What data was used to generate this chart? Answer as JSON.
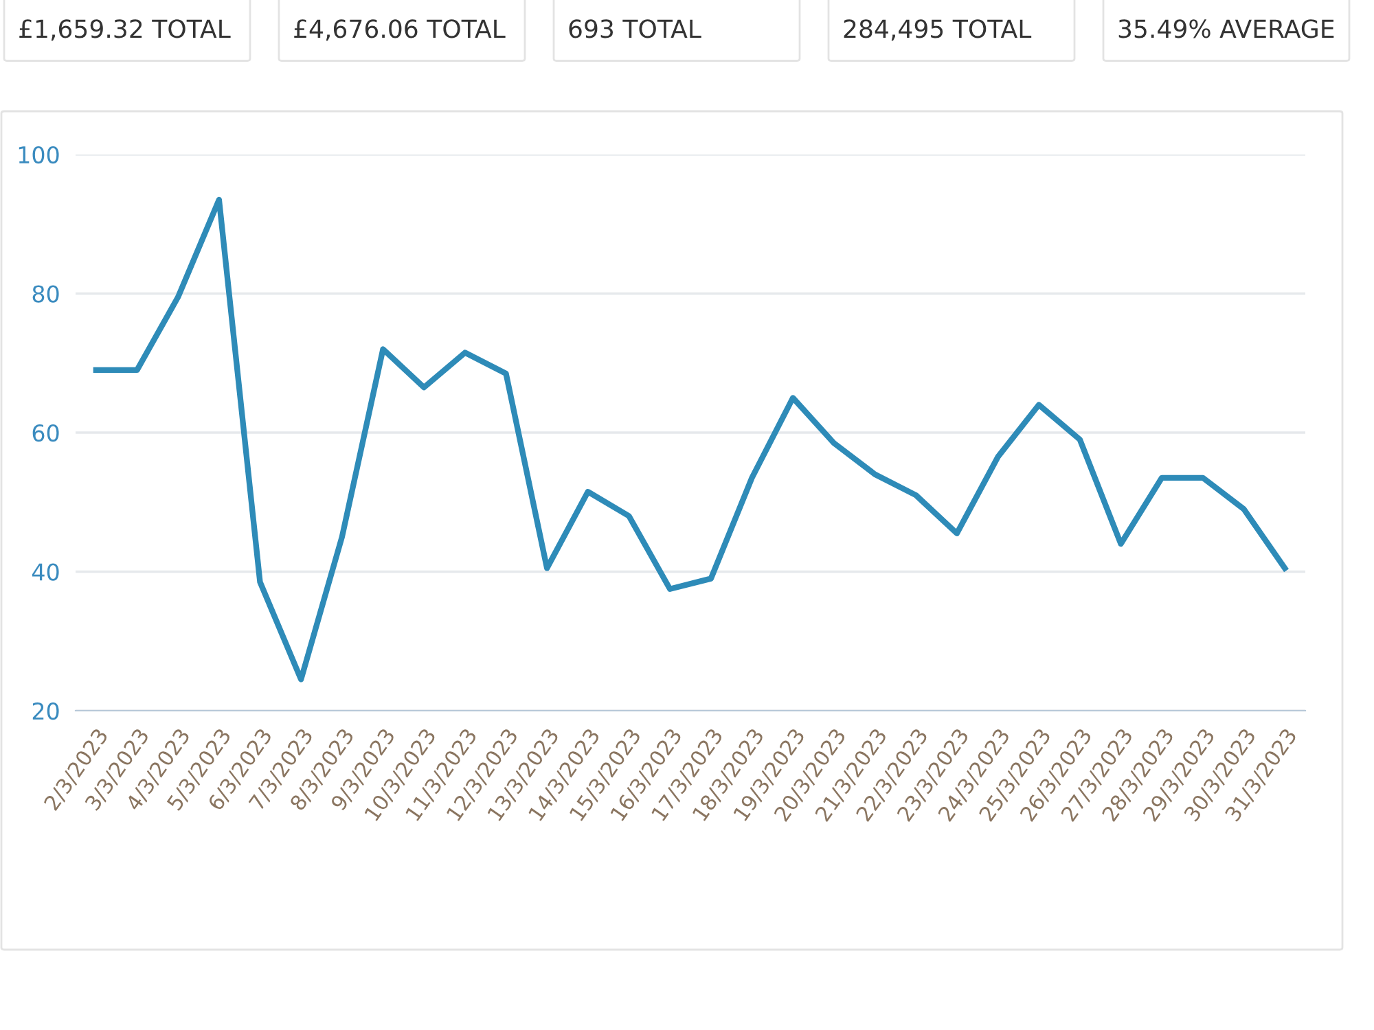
{
  "chart_data": {
    "type": "line",
    "annotations": [
      "£1,659.32 TOTAL",
      "£4,676.06 TOTAL",
      "693 TOTAL",
      "284,495 TOTAL",
      "35.49% AVERAGE"
    ],
    "categories": [
      "2/3/2023",
      "3/3/2023",
      "4/3/2023",
      "5/3/2023",
      "6/3/2023",
      "7/3/2023",
      "8/3/2023",
      "9/3/2023",
      "10/3/2023",
      "11/3/2023",
      "12/3/2023",
      "13/3/2023",
      "14/3/2023",
      "15/3/2023",
      "16/3/2023",
      "17/3/2023",
      "18/3/2023",
      "19/3/2023",
      "20/3/2023",
      "21/3/2023",
      "22/3/2023",
      "23/3/2023",
      "24/3/2023",
      "25/3/2023",
      "26/3/2023",
      "27/3/2023",
      "28/3/2023",
      "29/3/2023",
      "30/3/2023",
      "31/3/2023"
    ],
    "series": [
      {
        "color": "#2e8bb8",
        "values": [
          69,
          69,
          79.5,
          93.5,
          38.5,
          24.5,
          45,
          72,
          66.5,
          71.5,
          68.5,
          40.5,
          51.5,
          48,
          37.5,
          39,
          53.5,
          65,
          58.5,
          54,
          51,
          45.5,
          56.5,
          64,
          59,
          44,
          53.5,
          53.5,
          49,
          40.5
        ]
      }
    ],
    "ylim": [
      20,
      100
    ],
    "yticks": [
      20,
      40,
      60,
      80,
      100
    ],
    "grid": "y",
    "line_style": "solid",
    "marker": "none"
  }
}
